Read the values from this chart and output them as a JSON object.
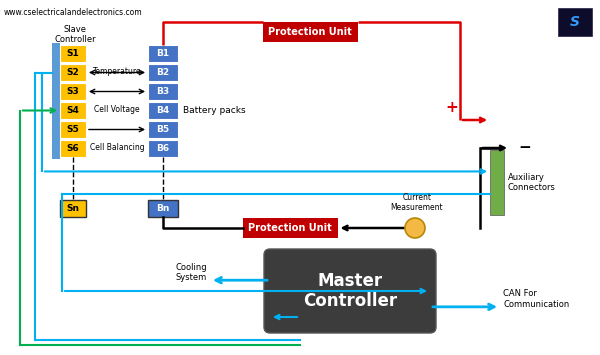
{
  "bg_color": "#ffffff",
  "title_text": "www.cselectricalandelectronics.com",
  "slave_labels": [
    "S1",
    "S2",
    "S3",
    "S4",
    "S5",
    "S6"
  ],
  "battery_labels": [
    "B1",
    "B2",
    "B3",
    "B4",
    "B5",
    "B6"
  ],
  "slave_color": "#FFC000",
  "battery_color": "#4472C4",
  "protection_color": "#C00000",
  "master_color": "#3C3C3C",
  "aux_color": "#70AD47",
  "current_color": "#F4B942",
  "arrow_blue": "#00B0F0",
  "arrow_green": "#00B050",
  "line_red": "#DD0000",
  "line_black": "#000000",
  "slave_bar_color": "#5B9BD5",
  "battery_bar_color": "#2E75B6"
}
